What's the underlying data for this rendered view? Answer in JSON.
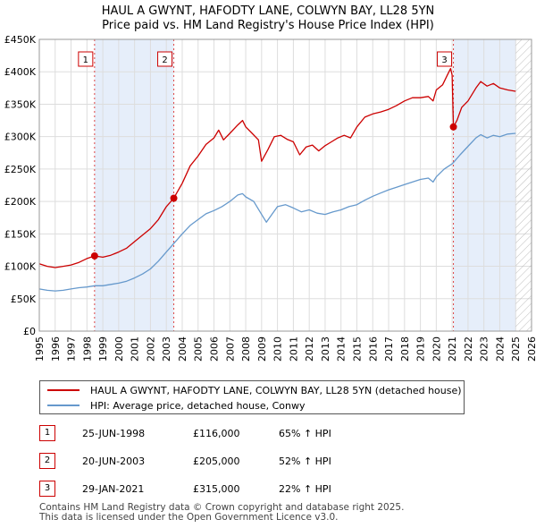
{
  "title": {
    "line1": "HAUL A GWYNT, HAFODTY LANE, COLWYN BAY, LL28 5YN",
    "line2": "Price paid vs. HM Land Registry's House Price Index (HPI)"
  },
  "colors": {
    "property": "#cc0000",
    "hpi": "#6699cc",
    "shade": "#e6eefa",
    "grid": "#dddddd",
    "marker_border": "#cc0000"
  },
  "legend": {
    "property_label": "HAUL A GWYNT, HAFODTY LANE, COLWYN BAY, LL28 5YN (detached house)",
    "hpi_label": "HPI: Average price, detached house, Conwy"
  },
  "transactions": [
    {
      "num": "1",
      "date": "25-JUN-1998",
      "price": "£116,000",
      "hpi_change": "65% ↑ HPI"
    },
    {
      "num": "2",
      "date": "20-JUN-2003",
      "price": "£205,000",
      "hpi_change": "52% ↑ HPI"
    },
    {
      "num": "3",
      "date": "29-JAN-2021",
      "price": "£315,000",
      "hpi_change": "22% ↑ HPI"
    }
  ],
  "footer": {
    "line1": "Contains HM Land Registry data © Crown copyright and database right 2025.",
    "line2": "This data is licensed under the Open Government Licence v3.0."
  },
  "chart_data": {
    "type": "line",
    "x_range": [
      1995,
      2026
    ],
    "ylim": [
      0,
      450000
    ],
    "y_ticks": [
      {
        "value": 0,
        "label": "£0"
      },
      {
        "value": 50000,
        "label": "£50K"
      },
      {
        "value": 100000,
        "label": "£100K"
      },
      {
        "value": 150000,
        "label": "£150K"
      },
      {
        "value": 200000,
        "label": "£200K"
      },
      {
        "value": 250000,
        "label": "£250K"
      },
      {
        "value": 300000,
        "label": "£300K"
      },
      {
        "value": 350000,
        "label": "£350K"
      },
      {
        "value": 400000,
        "label": "£400K"
      },
      {
        "value": 450000,
        "label": "£450K"
      }
    ],
    "x_ticks": [
      "1995",
      "1996",
      "1997",
      "1998",
      "1999",
      "2000",
      "2001",
      "2002",
      "2003",
      "2004",
      "2005",
      "2006",
      "2007",
      "2008",
      "2009",
      "2010",
      "2011",
      "2012",
      "2013",
      "2014",
      "2015",
      "2016",
      "2017",
      "2018",
      "2019",
      "2020",
      "2021",
      "2022",
      "2023",
      "2024",
      "2025",
      "2026"
    ],
    "shaded_ranges": [
      [
        1998.48,
        2003.47
      ],
      [
        2021.08,
        2025.0
      ]
    ],
    "future_hatch_from": 2025.0,
    "sales": [
      {
        "label": "1",
        "x": 1998.48,
        "y": 116000
      },
      {
        "label": "2",
        "x": 2003.47,
        "y": 205000
      },
      {
        "label": "3",
        "x": 2021.08,
        "y": 315000
      }
    ],
    "series": [
      {
        "name": "HAUL A GWYNT, HAFODTY LANE, COLWYN BAY, LL28 5YN (detached house)",
        "color": "#cc0000",
        "points": [
          [
            1995.0,
            104000
          ],
          [
            1995.5,
            100000
          ],
          [
            1996.0,
            98000
          ],
          [
            1996.5,
            100000
          ],
          [
            1997.0,
            102000
          ],
          [
            1997.5,
            106000
          ],
          [
            1998.0,
            112000
          ],
          [
            1998.48,
            116000
          ],
          [
            1999.0,
            114000
          ],
          [
            1999.5,
            117000
          ],
          [
            2000.0,
            122000
          ],
          [
            2000.5,
            128000
          ],
          [
            2001.0,
            138000
          ],
          [
            2001.5,
            148000
          ],
          [
            2002.0,
            158000
          ],
          [
            2002.5,
            172000
          ],
          [
            2003.0,
            192000
          ],
          [
            2003.47,
            205000
          ],
          [
            2004.0,
            228000
          ],
          [
            2004.5,
            255000
          ],
          [
            2005.0,
            270000
          ],
          [
            2005.5,
            288000
          ],
          [
            2006.0,
            298000
          ],
          [
            2006.3,
            310000
          ],
          [
            2006.6,
            295000
          ],
          [
            2007.0,
            305000
          ],
          [
            2007.5,
            318000
          ],
          [
            2007.8,
            325000
          ],
          [
            2008.0,
            315000
          ],
          [
            2008.4,
            305000
          ],
          [
            2008.8,
            295000
          ],
          [
            2009.0,
            262000
          ],
          [
            2009.4,
            280000
          ],
          [
            2009.8,
            300000
          ],
          [
            2010.2,
            302000
          ],
          [
            2010.6,
            296000
          ],
          [
            2011.0,
            292000
          ],
          [
            2011.4,
            272000
          ],
          [
            2011.8,
            284000
          ],
          [
            2012.2,
            287000
          ],
          [
            2012.6,
            278000
          ],
          [
            2013.0,
            286000
          ],
          [
            2013.4,
            292000
          ],
          [
            2013.8,
            298000
          ],
          [
            2014.2,
            302000
          ],
          [
            2014.6,
            298000
          ],
          [
            2015.0,
            315000
          ],
          [
            2015.5,
            330000
          ],
          [
            2016.0,
            335000
          ],
          [
            2016.5,
            338000
          ],
          [
            2017.0,
            342000
          ],
          [
            2017.5,
            348000
          ],
          [
            2018.0,
            355000
          ],
          [
            2018.5,
            360000
          ],
          [
            2019.0,
            360000
          ],
          [
            2019.5,
            362000
          ],
          [
            2019.8,
            355000
          ],
          [
            2020.0,
            372000
          ],
          [
            2020.4,
            380000
          ],
          [
            2020.7,
            395000
          ],
          [
            2020.9,
            405000
          ],
          [
            2021.0,
            395000
          ],
          [
            2021.08,
            315000
          ],
          [
            2021.3,
            325000
          ],
          [
            2021.6,
            345000
          ],
          [
            2022.0,
            355000
          ],
          [
            2022.5,
            375000
          ],
          [
            2022.8,
            385000
          ],
          [
            2023.2,
            378000
          ],
          [
            2023.6,
            382000
          ],
          [
            2024.0,
            375000
          ],
          [
            2024.5,
            372000
          ],
          [
            2025.0,
            370000
          ]
        ]
      },
      {
        "name": "HPI: Average price, detached house, Conwy",
        "color": "#6699cc",
        "points": [
          [
            1995.0,
            65000
          ],
          [
            1995.5,
            63000
          ],
          [
            1996.0,
            62000
          ],
          [
            1996.5,
            63000
          ],
          [
            1997.0,
            65000
          ],
          [
            1997.5,
            67000
          ],
          [
            1998.0,
            68000
          ],
          [
            1998.48,
            70000
          ],
          [
            1999.0,
            70000
          ],
          [
            1999.5,
            72000
          ],
          [
            2000.0,
            74000
          ],
          [
            2000.5,
            77000
          ],
          [
            2001.0,
            82000
          ],
          [
            2001.5,
            88000
          ],
          [
            2002.0,
            96000
          ],
          [
            2002.5,
            108000
          ],
          [
            2003.0,
            122000
          ],
          [
            2003.47,
            135000
          ],
          [
            2004.0,
            150000
          ],
          [
            2004.5,
            163000
          ],
          [
            2005.0,
            172000
          ],
          [
            2005.5,
            181000
          ],
          [
            2006.0,
            186000
          ],
          [
            2006.5,
            192000
          ],
          [
            2007.0,
            200000
          ],
          [
            2007.5,
            210000
          ],
          [
            2007.8,
            212000
          ],
          [
            2008.0,
            207000
          ],
          [
            2008.5,
            200000
          ],
          [
            2009.0,
            180000
          ],
          [
            2009.3,
            168000
          ],
          [
            2009.7,
            182000
          ],
          [
            2010.0,
            192000
          ],
          [
            2010.5,
            195000
          ],
          [
            2011.0,
            190000
          ],
          [
            2011.5,
            184000
          ],
          [
            2012.0,
            187000
          ],
          [
            2012.5,
            182000
          ],
          [
            2013.0,
            180000
          ],
          [
            2013.5,
            184000
          ],
          [
            2014.0,
            187000
          ],
          [
            2014.5,
            192000
          ],
          [
            2015.0,
            195000
          ],
          [
            2015.5,
            202000
          ],
          [
            2016.0,
            208000
          ],
          [
            2016.5,
            213000
          ],
          [
            2017.0,
            218000
          ],
          [
            2017.5,
            222000
          ],
          [
            2018.0,
            226000
          ],
          [
            2018.5,
            230000
          ],
          [
            2019.0,
            234000
          ],
          [
            2019.5,
            236000
          ],
          [
            2019.8,
            230000
          ],
          [
            2020.0,
            238000
          ],
          [
            2020.5,
            250000
          ],
          [
            2021.0,
            258000
          ],
          [
            2021.08,
            260000
          ],
          [
            2021.5,
            272000
          ],
          [
            2022.0,
            285000
          ],
          [
            2022.5,
            298000
          ],
          [
            2022.8,
            303000
          ],
          [
            2023.2,
            298000
          ],
          [
            2023.6,
            302000
          ],
          [
            2024.0,
            300000
          ],
          [
            2024.5,
            304000
          ],
          [
            2025.0,
            305000
          ]
        ]
      }
    ]
  }
}
